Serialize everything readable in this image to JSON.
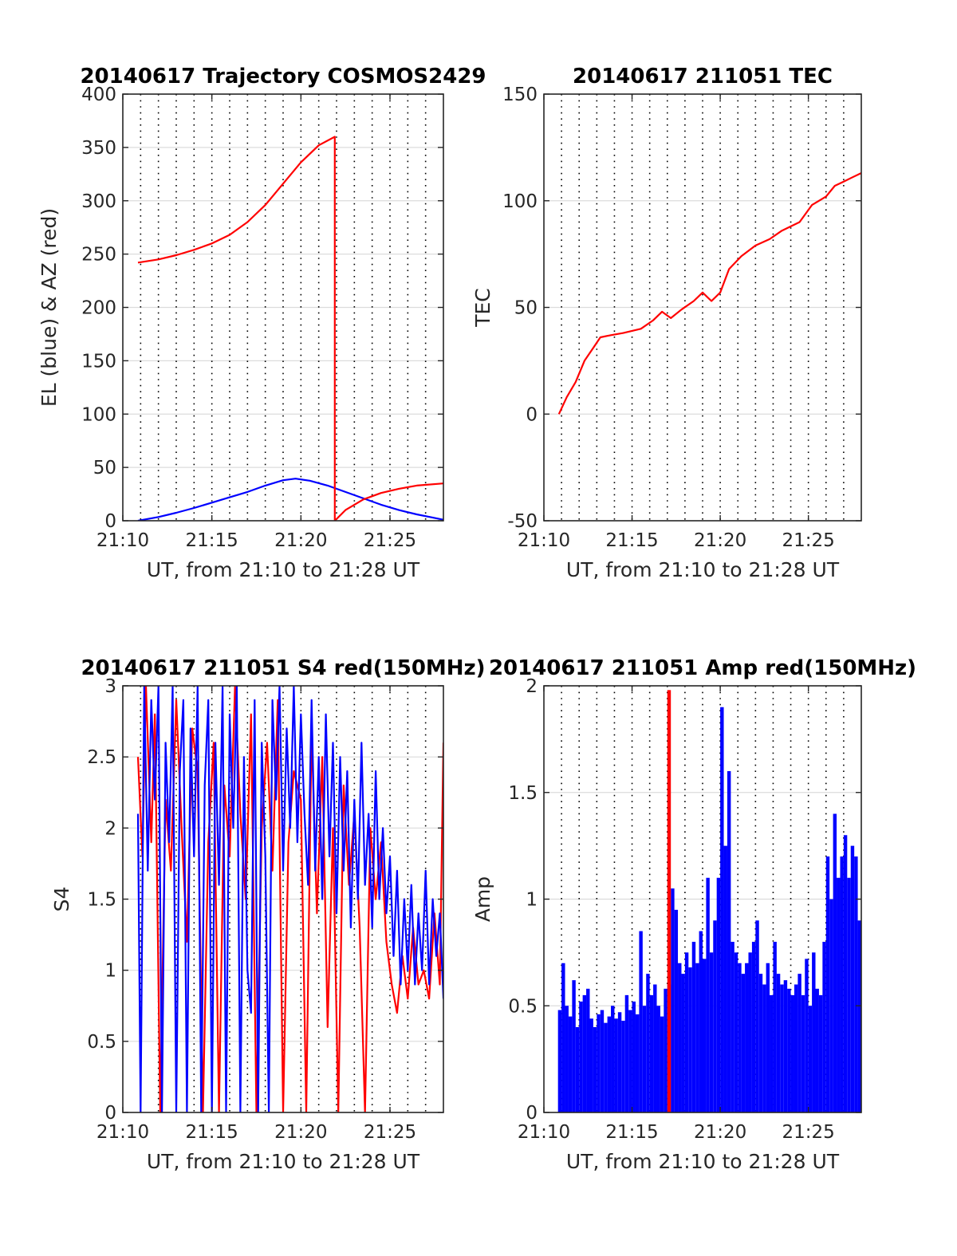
{
  "figure": {
    "background": "#ffffff"
  },
  "chart_data": [
    {
      "id": "trajectory",
      "type": "line",
      "title": "20140617 Trajectory COSMOS2429",
      "xlabel": "UT, from 21:10 to 21:28 UT",
      "ylabel": "EL (blue) & AZ (red)",
      "x_unit": "minutes after 21:00 UT",
      "xlim": [
        10,
        28
      ],
      "ylim": [
        0,
        400
      ],
      "xticks": [
        10,
        15,
        20,
        25
      ],
      "xticklabels": [
        "21:10",
        "21:15",
        "21:20",
        "21:25"
      ],
      "yticks": [
        0,
        50,
        100,
        150,
        200,
        250,
        300,
        350,
        400
      ],
      "yticklabels": [
        "0",
        "50",
        "100",
        "150",
        "200",
        "250",
        "300",
        "350",
        "400"
      ],
      "grid": true,
      "series": [
        {
          "color": "#0000ff",
          "x": [
            10.85,
            12,
            13,
            14,
            15,
            16,
            17,
            18,
            19,
            19.7,
            20.5,
            21.5,
            22.5,
            23.5,
            24.5,
            25.5,
            26.5,
            28
          ],
          "y": [
            0,
            3.5,
            7.5,
            12,
            17,
            22,
            27,
            33,
            38,
            39.5,
            37.5,
            33,
            27,
            21,
            15,
            10,
            6,
            1
          ]
        },
        {
          "color": "#ff0000",
          "x": [
            10.85,
            12,
            13,
            14,
            15,
            16,
            17,
            18,
            19,
            20,
            21,
            21.9,
            21.9,
            22.5,
            23.5,
            24.5,
            25.5,
            26.5,
            28
          ],
          "y": [
            242,
            245,
            249,
            254,
            260,
            268,
            280,
            296,
            316,
            336,
            352,
            360,
            0,
            10,
            20,
            26,
            30,
            33,
            35
          ]
        }
      ]
    },
    {
      "id": "tec",
      "type": "line",
      "title": "20140617 211051 TEC",
      "xlabel": "UT, from 21:10 to 21:28 UT",
      "ylabel": "TEC",
      "x_unit": "minutes after 21:00 UT",
      "xlim": [
        10,
        28
      ],
      "ylim": [
        -50,
        150
      ],
      "xticks": [
        10,
        15,
        20,
        25
      ],
      "xticklabels": [
        "21:10",
        "21:15",
        "21:20",
        "21:25"
      ],
      "yticks": [
        -50,
        0,
        50,
        100,
        150
      ],
      "yticklabels": [
        "-50",
        "0",
        "50",
        "100",
        "150"
      ],
      "grid": true,
      "series": [
        {
          "color": "#ff0000",
          "x": [
            10.85,
            11.3,
            11.8,
            12.3,
            12.8,
            13.2,
            13.8,
            14.5,
            15.5,
            16.2,
            16.7,
            17.2,
            17.8,
            18.5,
            19,
            19.5,
            20,
            20.5,
            21.2,
            22,
            22.8,
            23.5,
            24.5,
            25.2,
            26,
            26.5,
            27,
            27.5,
            28
          ],
          "y": [
            0,
            8,
            15,
            25,
            31,
            36,
            37,
            38,
            40,
            44,
            48,
            45,
            49,
            53,
            57,
            53,
            57,
            68,
            74,
            79,
            82,
            86,
            90,
            98,
            102,
            107,
            109,
            111,
            113
          ]
        }
      ]
    },
    {
      "id": "s4",
      "type": "line",
      "title": "20140617 211051 S4 red(150MHz)",
      "xlabel": "UT, from 21:10 to 21:28 UT",
      "ylabel": "S4",
      "x_unit": "minutes after 21:00 UT",
      "xlim": [
        10,
        28
      ],
      "ylim": [
        0,
        3
      ],
      "xticks": [
        10,
        15,
        20,
        25
      ],
      "xticklabels": [
        "21:10",
        "21:15",
        "21:20",
        "21:25"
      ],
      "yticks": [
        0,
        0.5,
        1,
        1.5,
        2,
        2.5,
        3
      ],
      "yticklabels": [
        "0",
        "0.5",
        "1",
        "1.5",
        "2",
        "2.5",
        "3"
      ],
      "grid": true,
      "series": [
        {
          "color": "#ff0000",
          "x": [
            10.85,
            11.1,
            11.3,
            11.6,
            11.8,
            12.1,
            12.4,
            12.7,
            13.0,
            13.3,
            13.6,
            13.9,
            14.2,
            14.5,
            14.8,
            15.1,
            15.4,
            15.7,
            16.0,
            16.3,
            16.6,
            16.9,
            17.2,
            17.5,
            17.8,
            18.1,
            18.4,
            18.7,
            19.0,
            19.3,
            19.6,
            20.0,
            20.3,
            20.6,
            20.9,
            21.2,
            21.5,
            21.8,
            22.1,
            22.4,
            22.7,
            23.0,
            23.3,
            23.6,
            23.9,
            24.2,
            24.5,
            24.8,
            25.1,
            25.4,
            25.7,
            26.0,
            26.3,
            26.6,
            26.9,
            27.2,
            27.5,
            27.8,
            28.0
          ],
          "y": [
            2.5,
            1.8,
            3.0,
            1.9,
            2.8,
            0.0,
            2.2,
            1.7,
            2.9,
            2.0,
            1.2,
            2.7,
            2.4,
            0.0,
            1.9,
            2.6,
            0.0,
            2.3,
            1.8,
            3.0,
            2.1,
            1.5,
            2.8,
            0.0,
            2.0,
            2.6,
            1.7,
            2.9,
            0.0,
            1.9,
            2.4,
            2.2,
            0.0,
            2.7,
            1.4,
            2.5,
            0.6,
            2.0,
            0.0,
            2.3,
            1.6,
            2.1,
            1.3,
            0.0,
            2.0,
            1.5,
            1.9,
            1.2,
            0.9,
            0.7,
            1.1,
            0.8,
            1.3,
            0.9,
            1.0,
            0.8,
            1.4,
            0.9,
            2.6
          ]
        },
        {
          "color": "#0000ff",
          "x": [
            10.85,
            11.0,
            11.2,
            11.4,
            11.6,
            11.8,
            12.0,
            12.2,
            12.4,
            12.6,
            12.8,
            13.0,
            13.2,
            13.4,
            13.6,
            13.8,
            14.0,
            14.2,
            14.4,
            14.6,
            14.8,
            15.0,
            15.2,
            15.4,
            15.6,
            15.8,
            16.0,
            16.2,
            16.4,
            16.6,
            16.8,
            17.0,
            17.2,
            17.4,
            17.6,
            17.8,
            18.0,
            18.2,
            18.4,
            18.6,
            18.8,
            19.0,
            19.2,
            19.4,
            19.6,
            19.8,
            20.0,
            20.2,
            20.4,
            20.6,
            20.8,
            21.0,
            21.2,
            21.4,
            21.6,
            21.8,
            22.0,
            22.2,
            22.4,
            22.6,
            22.8,
            23.0,
            23.2,
            23.4,
            23.6,
            23.8,
            24.0,
            24.2,
            24.4,
            24.6,
            24.8,
            25.0,
            25.2,
            25.4,
            25.6,
            25.8,
            26.0,
            26.2,
            26.4,
            26.6,
            26.8,
            27.0,
            27.2,
            27.4,
            27.6,
            27.8,
            28.0
          ],
          "y": [
            2.1,
            0.0,
            3.0,
            1.7,
            2.9,
            2.2,
            3.0,
            0.0,
            2.6,
            1.9,
            3.0,
            0.0,
            2.4,
            2.9,
            0.0,
            2.7,
            1.8,
            3.0,
            0.0,
            2.3,
            2.9,
            0.0,
            2.6,
            1.6,
            3.0,
            0.0,
            2.8,
            2.0,
            3.0,
            0.0,
            2.5,
            1.0,
            0.7,
            2.9,
            0.0,
            2.6,
            1.8,
            0.0,
            2.9,
            2.2,
            3.0,
            1.7,
            2.7,
            2.0,
            3.0,
            1.9,
            2.8,
            2.1,
            1.6,
            2.9,
            1.7,
            2.5,
            1.5,
            2.8,
            1.8,
            2.6,
            1.4,
            2.5,
            1.7,
            2.4,
            1.3,
            2.2,
            1.5,
            2.6,
            1.6,
            2.1,
            1.3,
            2.4,
            1.5,
            2.0,
            1.4,
            1.8,
            1.1,
            1.7,
            0.9,
            1.5,
            1.0,
            1.6,
            0.9,
            1.4,
            1.0,
            1.7,
            0.9,
            1.5,
            1.1,
            1.4,
            0.8
          ]
        }
      ]
    },
    {
      "id": "amp",
      "type": "bar",
      "title": "20140617 211051 Amp red(150MHz)",
      "xlabel": "UT, from 21:10 to 21:28 UT",
      "ylabel": "Amp",
      "x_unit": "minutes after 21:00 UT",
      "xlim": [
        10,
        28
      ],
      "ylim": [
        0,
        2
      ],
      "xticks": [
        10,
        15,
        20,
        25
      ],
      "xticklabels": [
        "21:10",
        "21:15",
        "21:20",
        "21:25"
      ],
      "yticks": [
        0,
        0.5,
        1,
        1.5,
        2
      ],
      "yticklabels": [
        "0",
        "0.5",
        "1",
        "1.5",
        "2"
      ],
      "grid": true,
      "series": [
        {
          "color": "#0000ff",
          "x": [
            10.9,
            11.1,
            11.3,
            11.5,
            11.7,
            11.9,
            12.1,
            12.3,
            12.5,
            12.7,
            12.9,
            13.1,
            13.3,
            13.5,
            13.7,
            13.9,
            14.1,
            14.3,
            14.5,
            14.7,
            14.9,
            15.1,
            15.3,
            15.5,
            15.7,
            15.9,
            16.1,
            16.3,
            16.5,
            16.7,
            16.9,
            17.1,
            17.3,
            17.5,
            17.7,
            17.9,
            18.1,
            18.3,
            18.5,
            18.7,
            18.9,
            19.1,
            19.3,
            19.5,
            19.7,
            19.9,
            20.1,
            20.3,
            20.5,
            20.7,
            20.9,
            21.1,
            21.3,
            21.5,
            21.7,
            21.9,
            22.1,
            22.3,
            22.5,
            22.7,
            22.9,
            23.1,
            23.3,
            23.5,
            23.7,
            23.9,
            24.1,
            24.3,
            24.5,
            24.7,
            24.9,
            25.1,
            25.3,
            25.5,
            25.7,
            25.9,
            26.1,
            26.3,
            26.5,
            26.7,
            26.9,
            27.1,
            27.3,
            27.5,
            27.7,
            27.9
          ],
          "y": [
            0.48,
            0.7,
            0.5,
            0.45,
            0.62,
            0.4,
            0.52,
            0.55,
            0.58,
            0.44,
            0.4,
            0.46,
            0.48,
            0.42,
            0.45,
            0.5,
            0.44,
            0.47,
            0.43,
            0.55,
            0.48,
            0.52,
            0.46,
            0.85,
            0.5,
            0.65,
            0.55,
            0.6,
            0.5,
            0.45,
            0.58,
            0.6,
            1.05,
            0.95,
            0.7,
            0.65,
            0.75,
            0.68,
            0.8,
            0.7,
            0.85,
            0.72,
            1.1,
            0.75,
            0.9,
            1.1,
            1.9,
            1.25,
            1.6,
            0.8,
            0.75,
            0.7,
            0.65,
            0.7,
            0.75,
            0.8,
            0.9,
            0.65,
            0.6,
            0.7,
            0.55,
            0.8,
            0.65,
            0.6,
            0.62,
            0.58,
            0.55,
            0.6,
            0.65,
            0.55,
            0.72,
            0.5,
            0.75,
            0.58,
            0.55,
            0.8,
            1.2,
            1.0,
            1.4,
            1.1,
            1.2,
            1.3,
            1.1,
            1.25,
            1.2,
            0.9
          ]
        },
        {
          "color": "#ff0000",
          "x": [
            17.1
          ],
          "y": [
            1.98
          ]
        }
      ]
    }
  ]
}
